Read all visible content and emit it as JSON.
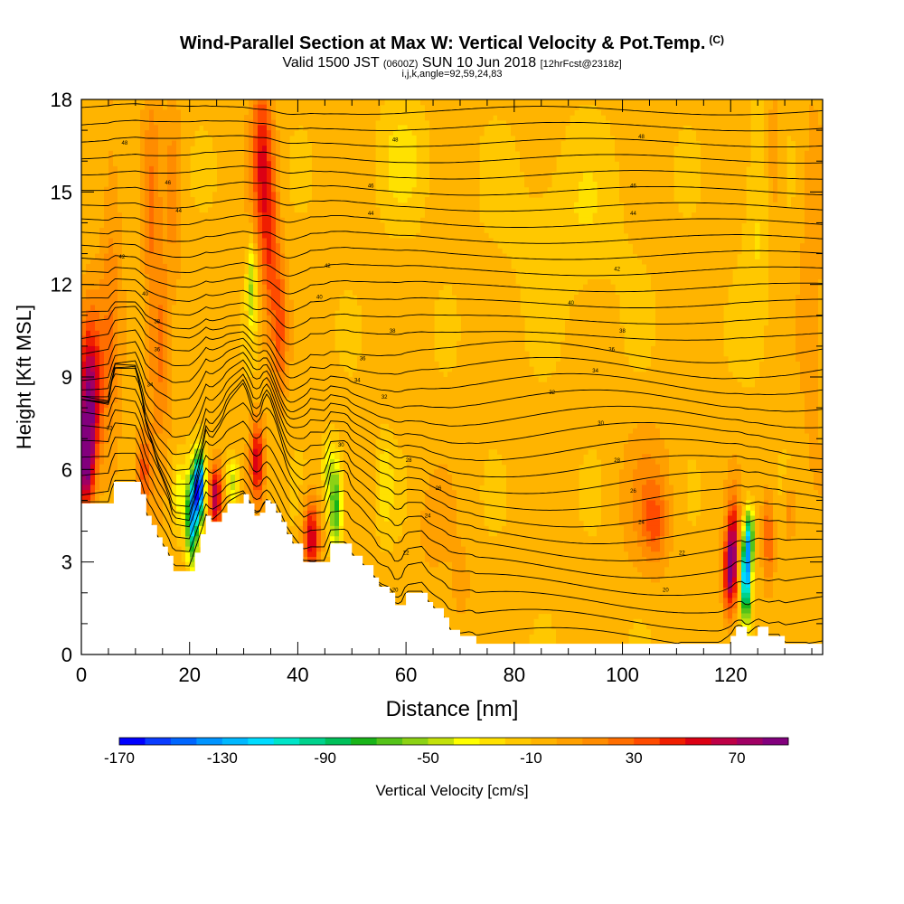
{
  "header": {
    "title_main": "Wind-Parallel Section at Max W: Vertical Velocity & Pot.Temp.",
    "title_mark": "(C)",
    "valid_a": "Valid 1500 JST",
    "valid_b": "(0600Z)",
    "valid_c": "SUN 10 Jun 2018",
    "valid_d": "[12hrFcst@2318z]",
    "indices": "i,j,k,angle=92,59,24,83"
  },
  "chart_data": {
    "type": "heatmap",
    "xlabel": "Distance [nm]",
    "ylabel": "Height [Kft MSL]",
    "xlim": [
      0,
      137
    ],
    "ylim": [
      0,
      18
    ],
    "x_ticks": [
      0,
      20,
      40,
      60,
      80,
      100,
      120
    ],
    "y_ticks": [
      0,
      3,
      6,
      9,
      12,
      15,
      18
    ],
    "colorbar": {
      "label": "Vertical Velocity [cm/s]",
      "tick_labels": [
        "-170",
        "-130",
        "-90",
        "-50",
        "-10",
        "30",
        "70"
      ],
      "tick_values": [
        -170,
        -130,
        -90,
        -50,
        -10,
        30,
        70
      ],
      "min": -170,
      "max": 90,
      "step": 10,
      "colors": [
        "#0000ff",
        "#0a3cff",
        "#0066ff",
        "#0094ff",
        "#00b8ff",
        "#00dcff",
        "#00e5c8",
        "#00d28c",
        "#00c05a",
        "#19b419",
        "#55c319",
        "#8cd214",
        "#c3e10a",
        "#ffff00",
        "#ffe100",
        "#ffc800",
        "#ffb400",
        "#ffa000",
        "#ff8c00",
        "#ff6e00",
        "#ff4b00",
        "#f01e00",
        "#dc0014",
        "#be0046",
        "#a00064",
        "#82007d"
      ]
    },
    "terrain_kft": [
      [
        0,
        4.9
      ],
      [
        5,
        4.9
      ],
      [
        6,
        5.6
      ],
      [
        10,
        5.6
      ],
      [
        11,
        5.2
      ],
      [
        12,
        4.5
      ],
      [
        13,
        4.2
      ],
      [
        14,
        3.8
      ],
      [
        15,
        3.5
      ],
      [
        16,
        3.2
      ],
      [
        17,
        2.7
      ],
      [
        20,
        2.7
      ],
      [
        21,
        3.3
      ],
      [
        22,
        3.9
      ],
      [
        23,
        4.5
      ],
      [
        24,
        4.3
      ],
      [
        26,
        4.6
      ],
      [
        27,
        4.9
      ],
      [
        30,
        5.2
      ],
      [
        31,
        4.9
      ],
      [
        32,
        4.5
      ],
      [
        33,
        4.6
      ],
      [
        34,
        5.0
      ],
      [
        35,
        4.9
      ],
      [
        36,
        4.6
      ],
      [
        37,
        4.3
      ],
      [
        38,
        3.9
      ],
      [
        39,
        3.6
      ],
      [
        41,
        3.0
      ],
      [
        45,
        3.0
      ],
      [
        46,
        3.6
      ],
      [
        49,
        3.6
      ],
      [
        50,
        3.2
      ],
      [
        52,
        2.9
      ],
      [
        54,
        2.5
      ],
      [
        55,
        2.2
      ],
      [
        57,
        2.0
      ],
      [
        58,
        1.6
      ],
      [
        59,
        1.6
      ],
      [
        60,
        2.0
      ],
      [
        63,
        2.0
      ],
      [
        64,
        1.7
      ],
      [
        65,
        1.5
      ],
      [
        67,
        1.2
      ],
      [
        68,
        0.8
      ],
      [
        70,
        0.6
      ],
      [
        72,
        0.6
      ],
      [
        73,
        0.35
      ],
      [
        118,
        0.35
      ],
      [
        120,
        0.6
      ],
      [
        121,
        0.9
      ],
      [
        122,
        0.9
      ],
      [
        123,
        0.6
      ],
      [
        125,
        0.9
      ],
      [
        127,
        0.6
      ],
      [
        129,
        0.6
      ],
      [
        130,
        0.35
      ],
      [
        137,
        0.35
      ]
    ],
    "w_cells": [
      {
        "x": 1.5,
        "y": 8.3,
        "rx": 2.2,
        "ry": 2.6,
        "w": 85
      },
      {
        "x": 0.8,
        "y": 6.2,
        "rx": 1.4,
        "ry": 1.5,
        "w": 70
      },
      {
        "x": 5.5,
        "y": 11,
        "rx": 2,
        "ry": 7,
        "w": 20
      },
      {
        "x": 13,
        "y": 13,
        "rx": 1.6,
        "ry": 6,
        "w": 25
      },
      {
        "x": 15,
        "y": 10,
        "rx": 1.5,
        "ry": 2.8,
        "w": 30
      },
      {
        "x": 17,
        "y": 15,
        "rx": 1.5,
        "ry": 3,
        "w": 20
      },
      {
        "x": 11.5,
        "y": 6,
        "rx": 1.2,
        "ry": 1.2,
        "w": 35
      },
      {
        "x": 18,
        "y": 5.2,
        "rx": 1.2,
        "ry": 1.2,
        "w": -30
      },
      {
        "x": 20.5,
        "y": 4.5,
        "rx": 1.1,
        "ry": 1.4,
        "w": -120
      },
      {
        "x": 21.8,
        "y": 5.5,
        "rx": 0.9,
        "ry": 1.0,
        "w": -150
      },
      {
        "x": 24.8,
        "y": 5.1,
        "rx": 1.2,
        "ry": 1.1,
        "w": 80
      },
      {
        "x": 28,
        "y": 5.6,
        "rx": 1.2,
        "ry": 0.8,
        "w": -40
      },
      {
        "x": 32.5,
        "y": 6.3,
        "rx": 1.2,
        "ry": 1.3,
        "w": 60
      },
      {
        "x": 33.3,
        "y": 16,
        "rx": 1.8,
        "ry": 3,
        "w": 50
      },
      {
        "x": 35,
        "y": 13,
        "rx": 1.6,
        "ry": 3.2,
        "w": 40
      },
      {
        "x": 36.8,
        "y": 10.5,
        "rx": 1.2,
        "ry": 2.2,
        "w": 35
      },
      {
        "x": 31.5,
        "y": 12,
        "rx": 0.9,
        "ry": 1.5,
        "w": -45
      },
      {
        "x": 42.5,
        "y": 3.8,
        "rx": 1.5,
        "ry": 1.2,
        "w": 70
      },
      {
        "x": 47,
        "y": 4.8,
        "rx": 1.2,
        "ry": 1.6,
        "w": -70
      },
      {
        "x": 45.5,
        "y": 6,
        "rx": 1,
        "ry": 1,
        "w": -30
      },
      {
        "x": 65,
        "y": 4,
        "rx": 3,
        "ry": 1.5,
        "w": 10
      },
      {
        "x": 70,
        "y": 2.2,
        "rx": 1.6,
        "ry": 1.2,
        "w": 15
      },
      {
        "x": 105,
        "y": 5,
        "rx": 4.5,
        "ry": 2.2,
        "w": 18
      },
      {
        "x": 106,
        "y": 4.2,
        "rx": 2.2,
        "ry": 1.2,
        "w": 25
      },
      {
        "x": 119.8,
        "y": 2.6,
        "rx": 1.2,
        "ry": 1.4,
        "w": 75
      },
      {
        "x": 120.5,
        "y": 3.8,
        "rx": 1,
        "ry": 1.5,
        "w": 50
      },
      {
        "x": 122.8,
        "y": 2.5,
        "rx": 0.9,
        "ry": 1.3,
        "w": -130
      },
      {
        "x": 123.5,
        "y": 3.8,
        "rx": 0.8,
        "ry": 1.0,
        "w": -90
      },
      {
        "x": 127,
        "y": 3.8,
        "rx": 1.1,
        "ry": 1.4,
        "w": 40
      },
      {
        "x": 131,
        "y": 4.6,
        "rx": 1.2,
        "ry": 0.9,
        "w": 25
      },
      {
        "x": 56,
        "y": 5.5,
        "rx": 1.5,
        "ry": 1.5,
        "w": -20
      },
      {
        "x": 90,
        "y": 14,
        "rx": 12,
        "ry": 3,
        "w": -12
      },
      {
        "x": 60,
        "y": 16,
        "rx": 5,
        "ry": 2,
        "w": -15
      },
      {
        "x": 125,
        "y": 14,
        "rx": 3,
        "ry": 4,
        "w": -15
      },
      {
        "x": 128,
        "y": 16,
        "rx": 1.5,
        "ry": 2.5,
        "w": 20
      },
      {
        "x": 135,
        "y": 12,
        "rx": 2,
        "ry": 6,
        "w": 15
      }
    ],
    "isentrope_labels": [
      {
        "x": 8,
        "y": 16.6,
        "t": "48"
      },
      {
        "x": 16,
        "y": 15.3,
        "t": "46"
      },
      {
        "x": 18,
        "y": 14.4,
        "t": "44"
      },
      {
        "x": 7.5,
        "y": 12.9,
        "t": "42"
      },
      {
        "x": 11.8,
        "y": 11.7,
        "t": "40"
      },
      {
        "x": 14,
        "y": 10.8,
        "t": "38"
      },
      {
        "x": 14,
        "y": 9.9,
        "t": "36"
      },
      {
        "x": 12.7,
        "y": 8.75,
        "t": "34"
      },
      {
        "x": 5.2,
        "y": 7.35,
        "t": "32"
      },
      {
        "x": 58,
        "y": 16.7,
        "t": "48"
      },
      {
        "x": 53.5,
        "y": 15.2,
        "t": "46"
      },
      {
        "x": 53.5,
        "y": 14.3,
        "t": "44"
      },
      {
        "x": 45.5,
        "y": 12.6,
        "t": "42"
      },
      {
        "x": 44,
        "y": 11.6,
        "t": "40"
      },
      {
        "x": 57.5,
        "y": 10.5,
        "t": "38"
      },
      {
        "x": 52,
        "y": 9.6,
        "t": "36"
      },
      {
        "x": 51,
        "y": 8.9,
        "t": "34"
      },
      {
        "x": 56,
        "y": 8.35,
        "t": "32"
      },
      {
        "x": 48,
        "y": 6.8,
        "t": "30"
      },
      {
        "x": 60.5,
        "y": 6.3,
        "t": "28"
      },
      {
        "x": 66,
        "y": 5.4,
        "t": "26"
      },
      {
        "x": 64,
        "y": 4.5,
        "t": "24"
      },
      {
        "x": 60,
        "y": 3.3,
        "t": "22"
      },
      {
        "x": 58,
        "y": 2.1,
        "t": "20"
      },
      {
        "x": 103.5,
        "y": 16.8,
        "t": "48"
      },
      {
        "x": 102,
        "y": 15.2,
        "t": "46"
      },
      {
        "x": 102,
        "y": 14.3,
        "t": "44"
      },
      {
        "x": 99,
        "y": 12.5,
        "t": "42"
      },
      {
        "x": 90.5,
        "y": 11.4,
        "t": "40"
      },
      {
        "x": 100,
        "y": 10.5,
        "t": "38"
      },
      {
        "x": 98,
        "y": 9.9,
        "t": "36"
      },
      {
        "x": 95,
        "y": 9.2,
        "t": "34"
      },
      {
        "x": 87,
        "y": 8.5,
        "t": "32"
      },
      {
        "x": 96,
        "y": 7.5,
        "t": "30"
      },
      {
        "x": 99,
        "y": 6.3,
        "t": "28"
      },
      {
        "x": 102,
        "y": 5.3,
        "t": "26"
      },
      {
        "x": 103.5,
        "y": 4.3,
        "t": "24"
      },
      {
        "x": 111,
        "y": 3.3,
        "t": "22"
      },
      {
        "x": 108,
        "y": 2.1,
        "t": "20"
      }
    ]
  }
}
